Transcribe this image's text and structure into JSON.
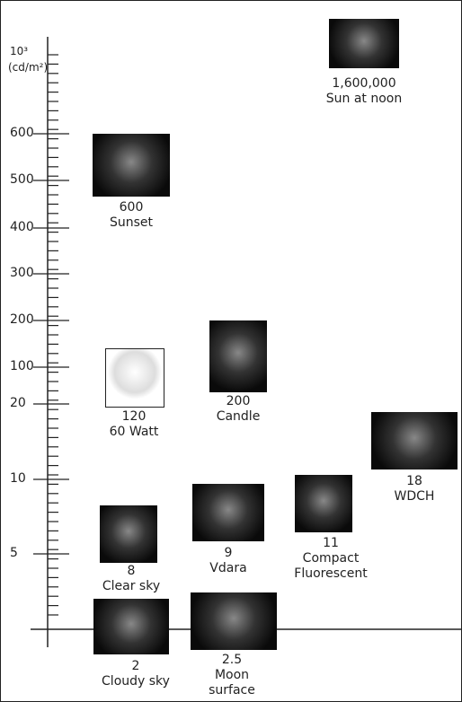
{
  "axis": {
    "scale": "10³",
    "unit": "(cd/m²)",
    "ticks": [
      "600",
      "500",
      "400",
      "300",
      "200",
      "100",
      "20",
      "10",
      "5"
    ]
  },
  "items": [
    {
      "value": "1,600,000",
      "label": "Sun at noon"
    },
    {
      "value": "600",
      "label": "Sunset"
    },
    {
      "value": "120",
      "label": "60 Watt"
    },
    {
      "value": "200",
      "label": "Candle"
    },
    {
      "value": "18",
      "label": "WDCH"
    },
    {
      "value": "11",
      "label": "Compact Fluorescent"
    },
    {
      "value": "9",
      "label": "Vdara"
    },
    {
      "value": "8",
      "label": "Clear sky"
    },
    {
      "value": "2",
      "label": "Cloudy sky"
    },
    {
      "value": "2.5",
      "label": "Moon surface"
    }
  ]
}
